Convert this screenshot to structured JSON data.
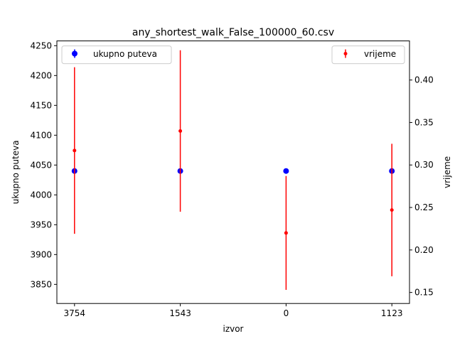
{
  "chart_data": {
    "type": "scatter",
    "title": "any_shortest_walk_False_100000_60.csv",
    "xlabel": "izvor",
    "ylabel_left": "ukupno puteva",
    "ylabel_right": "vrijeme",
    "categories": [
      "3754",
      "1543",
      "0",
      "1123"
    ],
    "ylim_left": [
      3818,
      4258
    ],
    "ylim_right": [
      0.137,
      0.446
    ],
    "yticks_left": [
      3850,
      3900,
      3950,
      4000,
      4050,
      4100,
      4150,
      4200,
      4250
    ],
    "yticks_right": [
      0.15,
      0.2,
      0.25,
      0.3,
      0.35,
      0.4
    ],
    "grid": false,
    "series": [
      {
        "name": "ukupno puteva",
        "axis": "left",
        "color": "#0000ff",
        "marker": "large-dot",
        "values": [
          4040,
          4040,
          4040,
          4040
        ],
        "errors": [
          0,
          0,
          0,
          0
        ],
        "legend_position": "top-left"
      },
      {
        "name": "vrijeme",
        "axis": "right",
        "color": "#ff0000",
        "marker": "small-dot",
        "values": [
          0.317,
          0.34,
          0.22,
          0.247
        ],
        "errors": [
          0.098,
          0.095,
          0.067,
          0.078
        ],
        "legend_position": "top-right"
      }
    ]
  }
}
